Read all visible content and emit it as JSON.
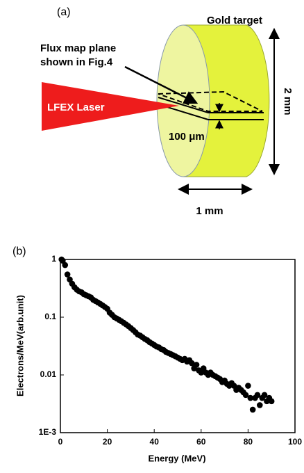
{
  "diagram": {
    "panel_label": "(a)",
    "target_label": "Gold target",
    "plane_label_line1": "Flux map plane",
    "plane_label_line2": "shown in Fig.4",
    "laser_label": "LFEX Laser",
    "thickness_label": "100 μm",
    "height_label": "2 mm",
    "width_label": "1 mm"
  },
  "chart_data": {
    "type": "scatter",
    "panel_label": "(b)",
    "xlabel": "Energy (MeV)",
    "ylabel": "Electrons/MeV(arb.unit)",
    "log_y": true,
    "color": "#000000",
    "xlim": [
      0,
      100
    ],
    "xticks": [
      0,
      20,
      40,
      60,
      80,
      100
    ],
    "ylim": [
      0.001,
      1
    ],
    "yticks": [
      {
        "value": 0.001,
        "label": "1E-3"
      },
      0.01,
      0.1,
      1
    ],
    "x": [
      0.5,
      1,
      2,
      3,
      4,
      5,
      6,
      7,
      8,
      9,
      10,
      11,
      12,
      13,
      14,
      15,
      16,
      17,
      18,
      19,
      20,
      21,
      22,
      23,
      24,
      25,
      26,
      27,
      28,
      29,
      30,
      31,
      32,
      33,
      34,
      35,
      36,
      37,
      38,
      39,
      40,
      41,
      42,
      43,
      44,
      45,
      46,
      47,
      48,
      49,
      50,
      51,
      52,
      53,
      54,
      55,
      56,
      57,
      58,
      59,
      60,
      61,
      62,
      63,
      64,
      65,
      66,
      67,
      68,
      69,
      70,
      71,
      72,
      73,
      74,
      75,
      76,
      77,
      78,
      79,
      80,
      81,
      82,
      83,
      84,
      85,
      86,
      87,
      88,
      89,
      90
    ],
    "values": [
      1.0,
      0.95,
      0.8,
      0.55,
      0.45,
      0.38,
      0.33,
      0.3,
      0.28,
      0.27,
      0.25,
      0.24,
      0.23,
      0.22,
      0.2,
      0.19,
      0.18,
      0.17,
      0.16,
      0.15,
      0.14,
      0.12,
      0.11,
      0.1,
      0.095,
      0.09,
      0.085,
      0.08,
      0.075,
      0.07,
      0.065,
      0.06,
      0.055,
      0.05,
      0.048,
      0.045,
      0.042,
      0.04,
      0.037,
      0.035,
      0.033,
      0.031,
      0.03,
      0.028,
      0.027,
      0.025,
      0.024,
      0.023,
      0.022,
      0.021,
      0.02,
      0.019,
      0.018,
      0.019,
      0.017,
      0.018,
      0.016,
      0.013,
      0.015,
      0.012,
      0.011,
      0.013,
      0.011,
      0.01,
      0.011,
      0.01,
      0.0095,
      0.009,
      0.0085,
      0.0075,
      0.008,
      0.007,
      0.0065,
      0.0072,
      0.0065,
      0.0055,
      0.006,
      0.0055,
      0.005,
      0.0045,
      0.0065,
      0.004,
      0.0025,
      0.004,
      0.0045,
      0.003,
      0.004,
      0.0045,
      0.0035,
      0.004,
      0.0035
    ]
  }
}
